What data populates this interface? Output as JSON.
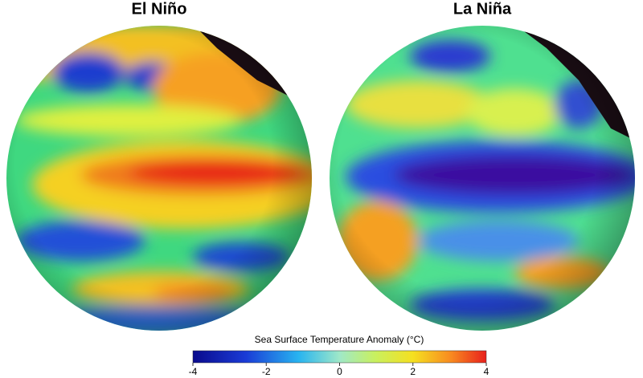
{
  "panels": [
    {
      "title": "El Niño"
    },
    {
      "title": "La Niña"
    }
  ],
  "colorbar": {
    "label": "Sea Surface Temperature Anomaly (°C)",
    "lim": [
      -4,
      4
    ],
    "ticks": [
      -4,
      -2,
      0,
      2,
      4
    ]
  }
}
